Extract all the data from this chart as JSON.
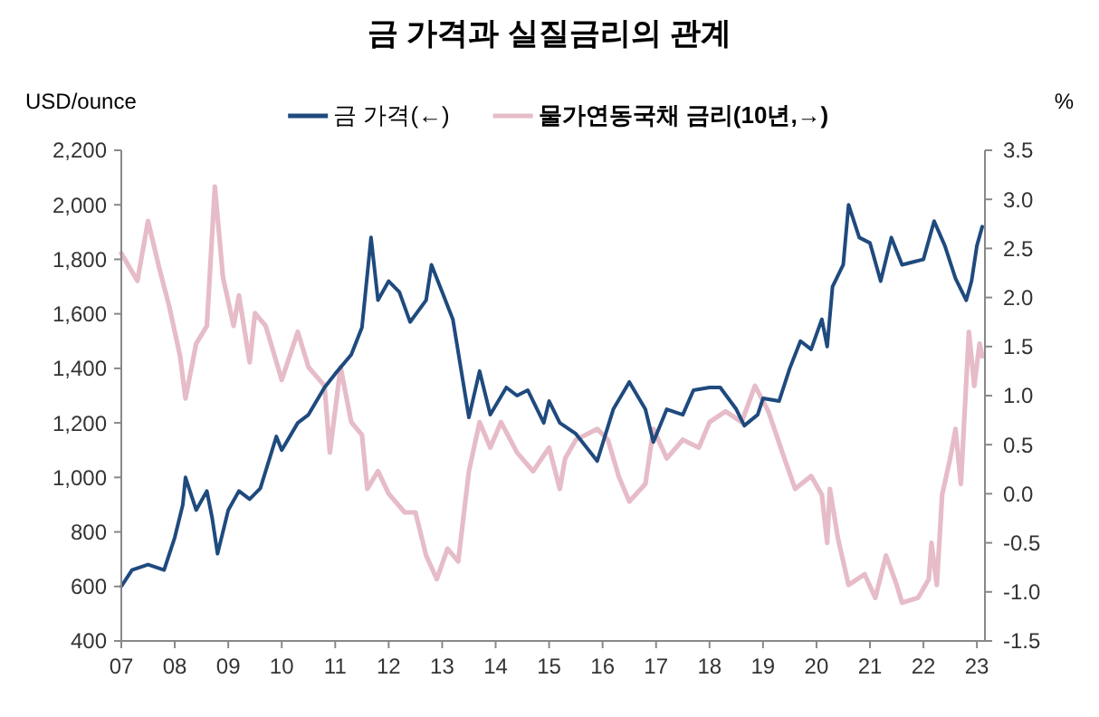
{
  "chart_data": {
    "type": "line",
    "title": "금 가격과 실질금리의 관계",
    "ylabel": "USD/ounce",
    "y2label": "%",
    "legend": "top",
    "grid": false,
    "line_style": "solid",
    "marker": "none",
    "xlim": [
      2007,
      2023.15
    ],
    "xticks": [
      {
        "value": 2007,
        "label": "07"
      },
      {
        "value": 2008,
        "label": "08"
      },
      {
        "value": 2009,
        "label": "09"
      },
      {
        "value": 2010,
        "label": "10"
      },
      {
        "value": 2011,
        "label": "11"
      },
      {
        "value": 2012,
        "label": "12"
      },
      {
        "value": 2013,
        "label": "13"
      },
      {
        "value": 2014,
        "label": "14"
      },
      {
        "value": 2015,
        "label": "15"
      },
      {
        "value": 2016,
        "label": "16"
      },
      {
        "value": 2017,
        "label": "17"
      },
      {
        "value": 2018,
        "label": "18"
      },
      {
        "value": 2019,
        "label": "19"
      },
      {
        "value": 2020,
        "label": "20"
      },
      {
        "value": 2021,
        "label": "21"
      },
      {
        "value": 2022,
        "label": "22"
      },
      {
        "value": 2023,
        "label": "23"
      }
    ],
    "ylim": [
      400,
      2200
    ],
    "yticks": [
      400,
      600,
      800,
      {
        "value": 1000,
        "label": "1,000"
      },
      {
        "value": 1200,
        "label": "1,200"
      },
      {
        "value": 1400,
        "label": "1,400"
      },
      {
        "value": 1600,
        "label": "1,600"
      },
      {
        "value": 1800,
        "label": "1,800"
      },
      {
        "value": 2000,
        "label": "2,000"
      },
      {
        "value": 2200,
        "label": "2,200"
      }
    ],
    "y2lim": [
      -1.5,
      3.5
    ],
    "y2ticks": [
      -1.5,
      {
        "value": -1,
        "label": "-1.0"
      },
      -0.5,
      {
        "value": 0,
        "label": "0.0"
      },
      0.5,
      {
        "value": 1,
        "label": "1.0"
      },
      1.5,
      {
        "value": 2,
        "label": "2.0"
      },
      2.5,
      {
        "value": 3,
        "label": "3.0"
      },
      3.5
    ],
    "series": [
      {
        "name": "물가연동국채 금리(10년,→)",
        "color": "#e6bcc8",
        "axis": "y2",
        "x": [
          2007.0,
          2007.3,
          2007.5,
          2007.7,
          2007.9,
          2008.1,
          2008.2,
          2008.4,
          2008.6,
          2008.75,
          2008.9,
          2009.1,
          2009.2,
          2009.4,
          2009.5,
          2009.7,
          2010.0,
          2010.3,
          2010.5,
          2010.8,
          2010.9,
          2011.1,
          2011.3,
          2011.5,
          2011.6,
          2011.8,
          2012.0,
          2012.3,
          2012.5,
          2012.7,
          2012.9,
          2013.1,
          2013.3,
          2013.5,
          2013.7,
          2013.9,
          2014.1,
          2014.4,
          2014.7,
          2015.0,
          2015.2,
          2015.3,
          2015.5,
          2015.9,
          2016.1,
          2016.3,
          2016.5,
          2016.8,
          2016.95,
          2017.2,
          2017.5,
          2017.8,
          2018.0,
          2018.3,
          2018.6,
          2018.85,
          2019.1,
          2019.4,
          2019.6,
          2019.9,
          2020.1,
          2020.2,
          2020.25,
          2020.4,
          2020.6,
          2020.9,
          2021.1,
          2021.3,
          2021.5,
          2021.6,
          2021.9,
          2022.1,
          2022.15,
          2022.25,
          2022.35,
          2022.5,
          2022.6,
          2022.7,
          2022.85,
          2022.95,
          2023.05,
          2023.1
        ],
        "values": [
          2.45,
          2.17,
          2.78,
          2.32,
          1.9,
          1.4,
          0.97,
          1.53,
          1.71,
          3.13,
          2.21,
          1.71,
          2.02,
          1.34,
          1.84,
          1.71,
          1.16,
          1.65,
          1.29,
          1.1,
          0.42,
          1.29,
          0.73,
          0.6,
          0.05,
          0.23,
          0.0,
          -0.19,
          -0.19,
          -0.63,
          -0.87,
          -0.56,
          -0.69,
          0.23,
          0.73,
          0.47,
          0.73,
          0.42,
          0.23,
          0.47,
          0.05,
          0.36,
          0.55,
          0.66,
          0.55,
          0.18,
          -0.08,
          0.1,
          0.66,
          0.36,
          0.55,
          0.47,
          0.73,
          0.84,
          0.73,
          1.1,
          0.84,
          0.36,
          0.05,
          0.18,
          -0.01,
          -0.5,
          0.05,
          -0.45,
          -0.93,
          -0.82,
          -1.06,
          -0.63,
          -0.93,
          -1.11,
          -1.06,
          -0.87,
          -0.5,
          -0.93,
          -0.01,
          0.36,
          0.66,
          0.1,
          1.65,
          1.1,
          1.53,
          1.4
        ]
      },
      {
        "name": "금 가격(←)",
        "color": "#1f4a7e",
        "x": [
          2007.0,
          2007.2,
          2007.5,
          2007.8,
          2008.0,
          2008.15,
          2008.2,
          2008.4,
          2008.6,
          2008.7,
          2008.8,
          2009.0,
          2009.2,
          2009.4,
          2009.6,
          2009.9,
          2010.0,
          2010.3,
          2010.5,
          2010.8,
          2011.0,
          2011.3,
          2011.5,
          2011.67,
          2011.8,
          2012.0,
          2012.2,
          2012.4,
          2012.7,
          2012.8,
          2013.0,
          2013.2,
          2013.35,
          2013.5,
          2013.7,
          2013.9,
          2014.2,
          2014.4,
          2014.6,
          2014.9,
          2015.0,
          2015.2,
          2015.5,
          2015.9,
          2016.2,
          2016.5,
          2016.8,
          2016.95,
          2017.2,
          2017.5,
          2017.7,
          2018.0,
          2018.2,
          2018.5,
          2018.65,
          2018.9,
          2019.0,
          2019.3,
          2019.5,
          2019.7,
          2019.9,
          2020.1,
          2020.2,
          2020.3,
          2020.5,
          2020.6,
          2020.8,
          2021.0,
          2021.2,
          2021.4,
          2021.6,
          2021.8,
          2022.0,
          2022.2,
          2022.4,
          2022.6,
          2022.8,
          2022.9,
          2023.0,
          2023.1
        ],
        "values": [
          600,
          660,
          680,
          660,
          780,
          900,
          1000,
          880,
          950,
          850,
          720,
          880,
          950,
          920,
          960,
          1150,
          1100,
          1200,
          1230,
          1330,
          1380,
          1450,
          1550,
          1880,
          1650,
          1720,
          1680,
          1570,
          1650,
          1780,
          1680,
          1580,
          1400,
          1220,
          1390,
          1230,
          1330,
          1300,
          1320,
          1200,
          1280,
          1200,
          1160,
          1060,
          1250,
          1350,
          1250,
          1130,
          1250,
          1230,
          1320,
          1330,
          1330,
          1250,
          1190,
          1230,
          1290,
          1280,
          1400,
          1500,
          1470,
          1580,
          1480,
          1700,
          1780,
          2000,
          1880,
          1860,
          1720,
          1880,
          1780,
          1790,
          1800,
          1940,
          1850,
          1730,
          1650,
          1720,
          1850,
          1920
        ]
      }
    ]
  }
}
